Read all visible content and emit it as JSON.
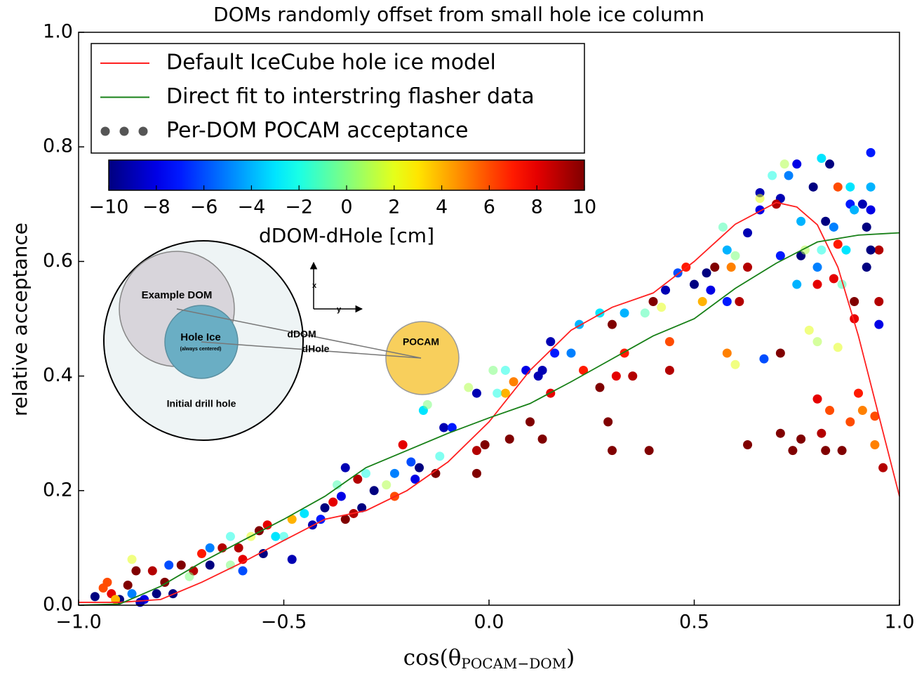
{
  "chart_data": {
    "type": "scatter",
    "title": "DOMs randomly offset from small hole ice column",
    "x_label": "cos(θ",
    "x_label_sub": "POCAM−DOM",
    "x_label_end": ")",
    "y_label": "relative acceptance",
    "xlim": [
      -1,
      1
    ],
    "ylim": [
      0,
      1
    ],
    "xticks": [
      {
        "value": -1,
        "label": "−1.0"
      },
      {
        "value": -0.5,
        "label": "−0.5"
      },
      {
        "value": 0,
        "label": "0.0"
      },
      {
        "value": 0.5,
        "label": "0.5"
      },
      {
        "value": 1,
        "label": "1.0"
      }
    ],
    "yticks": [
      {
        "value": 0,
        "label": "0.0"
      },
      {
        "value": 0.2,
        "label": "0.2"
      },
      {
        "value": 0.4,
        "label": "0.4"
      },
      {
        "value": 0.6,
        "label": "0.6"
      },
      {
        "value": 0.8,
        "label": "0.8"
      },
      {
        "value": 1,
        "label": "1.0"
      }
    ],
    "legend": "upper left",
    "series": [
      {
        "name": "Default IceCube hole ice model",
        "type": "line",
        "color": "#ff2020",
        "x": [
          -1,
          -0.9,
          -0.8,
          -0.7,
          -0.6,
          -0.5,
          -0.4,
          -0.3,
          -0.2,
          -0.1,
          0,
          0.1,
          0.2,
          0.3,
          0.4,
          0.5,
          0.6,
          0.7,
          0.75,
          0.8,
          0.85,
          0.9,
          0.95,
          1
        ],
        "values": [
          0.005,
          0.005,
          0.01,
          0.04,
          0.075,
          0.113,
          0.15,
          0.165,
          0.2,
          0.25,
          0.32,
          0.41,
          0.48,
          0.52,
          0.545,
          0.6,
          0.665,
          0.703,
          0.695,
          0.664,
          0.59,
          0.47,
          0.33,
          0.19
        ]
      },
      {
        "name": "Direct fit to interstring flasher data",
        "type": "line",
        "color": "#178017",
        "x": [
          -1,
          -0.9,
          -0.8,
          -0.7,
          -0.6,
          -0.5,
          -0.4,
          -0.3,
          -0.2,
          -0.1,
          0,
          0.1,
          0.2,
          0.3,
          0.4,
          0.5,
          0.6,
          0.7,
          0.8,
          0.9,
          1
        ],
        "values": [
          0,
          0.002,
          0.033,
          0.075,
          0.113,
          0.15,
          0.19,
          0.24,
          0.27,
          0.3,
          0.327,
          0.352,
          0.39,
          0.43,
          0.47,
          0.5,
          0.553,
          0.597,
          0.634,
          0.646,
          0.65
        ]
      },
      {
        "name": "Per-DOM POCAM acceptance",
        "type": "scatter",
        "color": "#555555",
        "x": [
          0.93,
          0.81,
          0.83,
          0.72,
          0.75,
          0.69,
          0.73,
          0.66,
          0.71,
          0.79,
          0.85,
          0.88,
          0.93,
          0.88,
          0.91,
          0.93,
          0.66,
          0.7,
          0.66,
          0.76,
          0.82,
          0.84,
          0.89,
          0.92,
          0.95,
          0.93,
          0.63,
          0.57,
          0.58,
          0.71,
          0.76,
          0.77,
          0.81,
          0.85,
          0.87,
          0.92,
          0.84,
          0.63,
          0.6,
          0.59,
          0.75,
          0.8,
          0.8,
          0.86,
          0.89,
          0.95,
          0.89,
          0.95,
          0.78,
          0.8,
          0.85,
          0.55,
          0.53,
          0.48,
          0.46,
          0.5,
          0.52,
          0.54,
          0.61,
          0.58,
          0.43,
          0.4,
          0.42,
          0.38,
          0.33,
          0.3,
          0.27,
          0.22,
          0.33,
          0.44,
          0.44,
          0.31,
          0.35,
          0.27,
          0.2,
          0.23,
          0.15,
          0.16,
          0.13,
          0.09,
          0.12,
          0.06,
          0.04,
          0.04,
          0.02,
          0.15,
          -0.03,
          0.29,
          0.3,
          0.39,
          0.1,
          0.13,
          0.05,
          -0.01,
          -0.03,
          -0.03,
          0.63,
          0.71,
          0.74,
          0.76,
          0.82,
          0.86,
          0.96,
          0.8,
          0.83,
          0.88,
          0.9,
          0.91,
          0.94,
          0.94,
          0.81,
          0.67,
          0.71,
          0.58,
          0.6,
          -0.11,
          -0.09,
          -0.12,
          -0.17,
          -0.21,
          -0.19,
          -0.18,
          -0.23,
          -0.13,
          -0.25,
          -0.28,
          -0.23,
          -0.3,
          -0.35,
          -0.32,
          -0.37,
          -0.36,
          -0.31,
          -0.33,
          -0.35,
          -0.38,
          -0.4,
          -0.41,
          -0.45,
          -0.43,
          -0.48,
          -0.54,
          -0.56,
          -0.52,
          -0.58,
          -0.61,
          -0.6,
          -0.65,
          -0.6,
          -0.63,
          -0.7,
          -0.68,
          -0.72,
          -0.75,
          -0.78,
          -0.73,
          -0.82,
          -0.86,
          -0.87,
          -0.79,
          -0.81,
          -0.84,
          -0.87,
          -0.9,
          -0.92,
          -0.94,
          -0.96,
          -0.93,
          -0.88,
          -0.91,
          -0.77,
          -0.85,
          -0.55,
          -0.48,
          -0.5,
          -0.68,
          -0.63,
          -0.16,
          -0.15,
          -0.05,
          0.01
        ],
        "values": [
          0.79,
          0.78,
          0.77,
          0.77,
          0.77,
          0.75,
          0.75,
          0.72,
          0.71,
          0.73,
          0.73,
          0.73,
          0.73,
          0.7,
          0.7,
          0.69,
          0.69,
          0.7,
          0.71,
          0.67,
          0.67,
          0.66,
          0.69,
          0.66,
          0.62,
          0.62,
          0.65,
          0.66,
          0.62,
          0.61,
          0.61,
          0.62,
          0.62,
          0.63,
          0.62,
          0.59,
          0.57,
          0.59,
          0.61,
          0.59,
          0.56,
          0.56,
          0.59,
          0.56,
          0.53,
          0.53,
          0.5,
          0.49,
          0.48,
          0.46,
          0.45,
          0.59,
          0.58,
          0.59,
          0.58,
          0.56,
          0.53,
          0.55,
          0.53,
          0.53,
          0.55,
          0.53,
          0.52,
          0.51,
          0.51,
          0.49,
          0.51,
          0.49,
          0.44,
          0.46,
          0.41,
          0.4,
          0.4,
          0.38,
          0.44,
          0.41,
          0.46,
          0.44,
          0.41,
          0.41,
          0.4,
          0.39,
          0.41,
          0.37,
          0.37,
          0.37,
          0.37,
          0.32,
          0.27,
          0.27,
          0.32,
          0.29,
          0.29,
          0.28,
          0.27,
          0.23,
          0.28,
          0.3,
          0.27,
          0.29,
          0.27,
          0.27,
          0.24,
          0.36,
          0.34,
          0.32,
          0.37,
          0.34,
          0.33,
          0.28,
          0.3,
          0.43,
          0.44,
          0.44,
          0.42,
          0.31,
          0.31,
          0.26,
          0.24,
          0.28,
          0.25,
          0.22,
          0.23,
          0.23,
          0.21,
          0.2,
          0.19,
          0.23,
          0.24,
          0.22,
          0.21,
          0.19,
          0.17,
          0.16,
          0.15,
          0.18,
          0.17,
          0.15,
          0.16,
          0.14,
          0.15,
          0.14,
          0.13,
          0.12,
          0.12,
          0.1,
          0.08,
          0.1,
          0.06,
          0.07,
          0.09,
          0.07,
          0.06,
          0.07,
          0.07,
          0.05,
          0.06,
          0.06,
          0.08,
          0.04,
          0.02,
          0.01,
          0.02,
          0.01,
          0.02,
          0.03,
          0.015,
          0.04,
          0.035,
          0.01,
          0.02,
          0.005,
          0.09,
          0.08,
          0.12,
          0.1,
          0.12,
          0.34,
          0.35,
          0.38,
          0.41
        ],
        "c": [
          -7,
          -3,
          -10,
          1,
          -8,
          -2,
          -5,
          -9,
          -9,
          -10,
          6,
          -3,
          -4,
          -7,
          -9,
          -8,
          -8,
          9,
          2,
          -4,
          -10,
          -5,
          -4,
          -10,
          9,
          -10,
          -9,
          -1,
          -4,
          -7,
          -10,
          1,
          -2,
          7,
          -3,
          -10,
          8,
          9,
          0,
          5,
          -4,
          8,
          -5,
          -1,
          10,
          9,
          8,
          -8,
          2,
          1,
          2,
          10,
          -10,
          7,
          -6,
          -10,
          4,
          -8,
          9,
          -7,
          -9,
          10,
          2,
          -1,
          -4,
          10,
          -3,
          -4,
          7,
          6,
          9,
          8,
          9,
          10,
          -5,
          7,
          -9,
          -7,
          -9,
          -8,
          -9,
          5,
          -2,
          4,
          -2,
          8,
          -9,
          10,
          10,
          10,
          10,
          10,
          10,
          10,
          9,
          10,
          10,
          10,
          10,
          10,
          10,
          10,
          9,
          8,
          6,
          6,
          7,
          5,
          6,
          5,
          9,
          -6,
          10,
          5,
          2,
          -9,
          -7,
          -2,
          -10,
          8,
          -6,
          -8,
          -5,
          10,
          1,
          -10,
          6,
          -2,
          -9,
          9,
          -1,
          -8,
          -10,
          9,
          10,
          8,
          -10,
          -7,
          -3,
          -9,
          4,
          8,
          10,
          -3,
          2,
          9,
          8,
          9,
          -6,
          0,
          7,
          -10,
          9,
          10,
          -6,
          0,
          9,
          10,
          2,
          10,
          -10,
          -8,
          -5,
          -10,
          8,
          6,
          -10,
          6,
          10,
          4,
          -10,
          -9,
          -10,
          -9,
          -2,
          -5,
          -2,
          -3,
          0,
          1,
          0
        ]
      }
    ],
    "colorbar": {
      "label": "dDOM-dHole [cm]",
      "colormap": "jet",
      "clim": [
        -10,
        10
      ],
      "ticks": [
        {
          "value": -10,
          "label": "−10"
        },
        {
          "value": -8,
          "label": "−8"
        },
        {
          "value": -6,
          "label": "−6"
        },
        {
          "value": -4,
          "label": "−4"
        },
        {
          "value": -2,
          "label": "−2"
        },
        0,
        2,
        4,
        6,
        8,
        10
      ]
    }
  },
  "inset": {
    "drill_hole": "Initial drill hole",
    "dom": "Example DOM",
    "hole_ice": "Hole Ice",
    "hole_ice_note": "(always centered)",
    "ddom": "dDOM",
    "dhole": "dHole",
    "pocam": "POCAM",
    "axis_x": "x",
    "axis_y": "y"
  }
}
